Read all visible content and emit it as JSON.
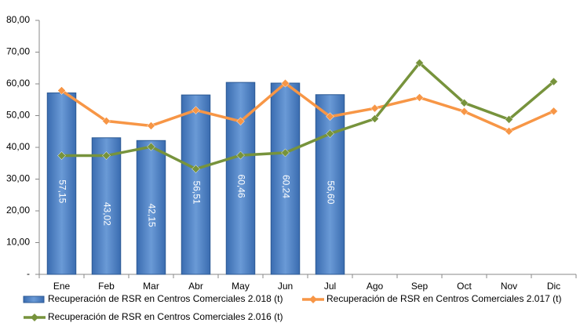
{
  "chart_data": {
    "type": "bar",
    "categories": [
      "Ene",
      "Feb",
      "Mar",
      "Abr",
      "May",
      "Jun",
      "Jul",
      "Ago",
      "Sep",
      "Oct",
      "Nov",
      "Dic"
    ],
    "series": [
      {
        "name": "Recuperación de RSR en Centros Comerciales 2.018 (t)",
        "type": "bar",
        "color": "#4f81bd",
        "values": [
          57.15,
          43.02,
          42.15,
          56.51,
          60.46,
          60.24,
          56.6,
          null,
          null,
          null,
          null,
          null
        ],
        "value_labels": [
          "57,15",
          "43,02",
          "42,15",
          "56,51",
          "60,46",
          "60,24",
          "56,60",
          null,
          null,
          null,
          null,
          null
        ]
      },
      {
        "name": "Recuperación de RSR en Centros Comerciales 2.017 (t)",
        "type": "line",
        "color": "#f79646",
        "values": [
          57.9,
          48.3,
          46.8,
          51.7,
          48.2,
          60.2,
          49.7,
          52.3,
          55.7,
          51.3,
          45.1,
          51.4
        ]
      },
      {
        "name": "Recuperación de RSR en Centros Comerciales 2.016 (t)",
        "type": "line",
        "color": "#77933c",
        "values": [
          37.4,
          37.4,
          40.2,
          33.2,
          37.5,
          38.3,
          44.3,
          49.0,
          66.6,
          54.0,
          48.8,
          60.7
        ]
      }
    ],
    "ylim": [
      0,
      80
    ],
    "yticks": [
      {
        "value": 0,
        "label": "-"
      },
      {
        "value": 10,
        "label": "10,00"
      },
      {
        "value": 20,
        "label": "20,00"
      },
      {
        "value": 30,
        "label": "30,00"
      },
      {
        "value": 40,
        "label": "40,00"
      },
      {
        "value": 50,
        "label": "50,00"
      },
      {
        "value": 60,
        "label": "60,00"
      },
      {
        "value": 70,
        "label": "70,00"
      },
      {
        "value": 80,
        "label": "80,00"
      }
    ],
    "grid": false,
    "legend": "bottom"
  }
}
